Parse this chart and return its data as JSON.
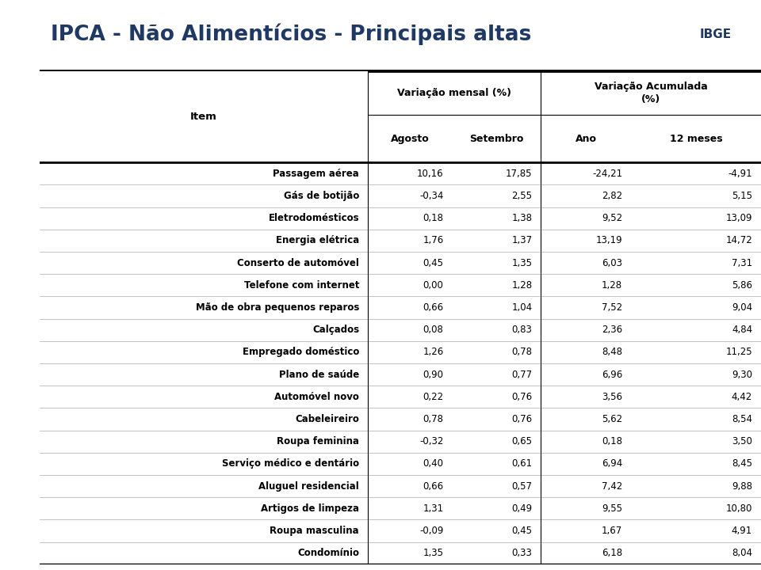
{
  "title": "IPCA - Não Alimentícios - Principais altas",
  "title_color": "#1F3864",
  "group_header1": "Variação mensal (%)",
  "group_header2": "Variação Acumulada\n(%)",
  "rows": [
    [
      "Passagem aérea",
      "10,16",
      "17,85",
      "-24,21",
      "-4,91"
    ],
    [
      "Gás de botijão",
      "-0,34",
      "2,55",
      "2,82",
      "5,15"
    ],
    [
      "Eletrodomésticos",
      "0,18",
      "1,38",
      "9,52",
      "13,09"
    ],
    [
      "Energia elétrica",
      "1,76",
      "1,37",
      "13,19",
      "14,72"
    ],
    [
      "Conserto de automóvel",
      "0,45",
      "1,35",
      "6,03",
      "7,31"
    ],
    [
      "Telefone com internet",
      "0,00",
      "1,28",
      "1,28",
      "5,86"
    ],
    [
      "Mão de obra pequenos reparos",
      "0,66",
      "1,04",
      "7,52",
      "9,04"
    ],
    [
      "Calçados",
      "0,08",
      "0,83",
      "2,36",
      "4,84"
    ],
    [
      "Empregado doméstico",
      "1,26",
      "0,78",
      "8,48",
      "11,25"
    ],
    [
      "Plano de saúde",
      "0,90",
      "0,77",
      "6,96",
      "9,30"
    ],
    [
      "Automóvel novo",
      "0,22",
      "0,76",
      "3,56",
      "4,42"
    ],
    [
      "Cabeleireiro",
      "0,78",
      "0,76",
      "5,62",
      "8,54"
    ],
    [
      "Roupa feminina",
      "-0,32",
      "0,65",
      "0,18",
      "3,50"
    ],
    [
      "Serviço médico e dentário",
      "0,40",
      "0,61",
      "6,94",
      "8,45"
    ],
    [
      "Aluguel residencial",
      "0,66",
      "0,57",
      "7,42",
      "9,88"
    ],
    [
      "Artigos de limpeza",
      "1,31",
      "0,49",
      "9,55",
      "10,80"
    ],
    [
      "Roupa masculina",
      "-0,09",
      "0,45",
      "1,67",
      "4,91"
    ],
    [
      "Condomínio",
      "1,35",
      "0,33",
      "6,18",
      "8,04"
    ]
  ],
  "sidebar_color": "#1F3864",
  "bg_color": "#FFFFFF",
  "header_bg_color": "#FFFFFF",
  "divider_color": "#000000",
  "text_color": "#000000",
  "light_line_color": "#AAAAAA"
}
